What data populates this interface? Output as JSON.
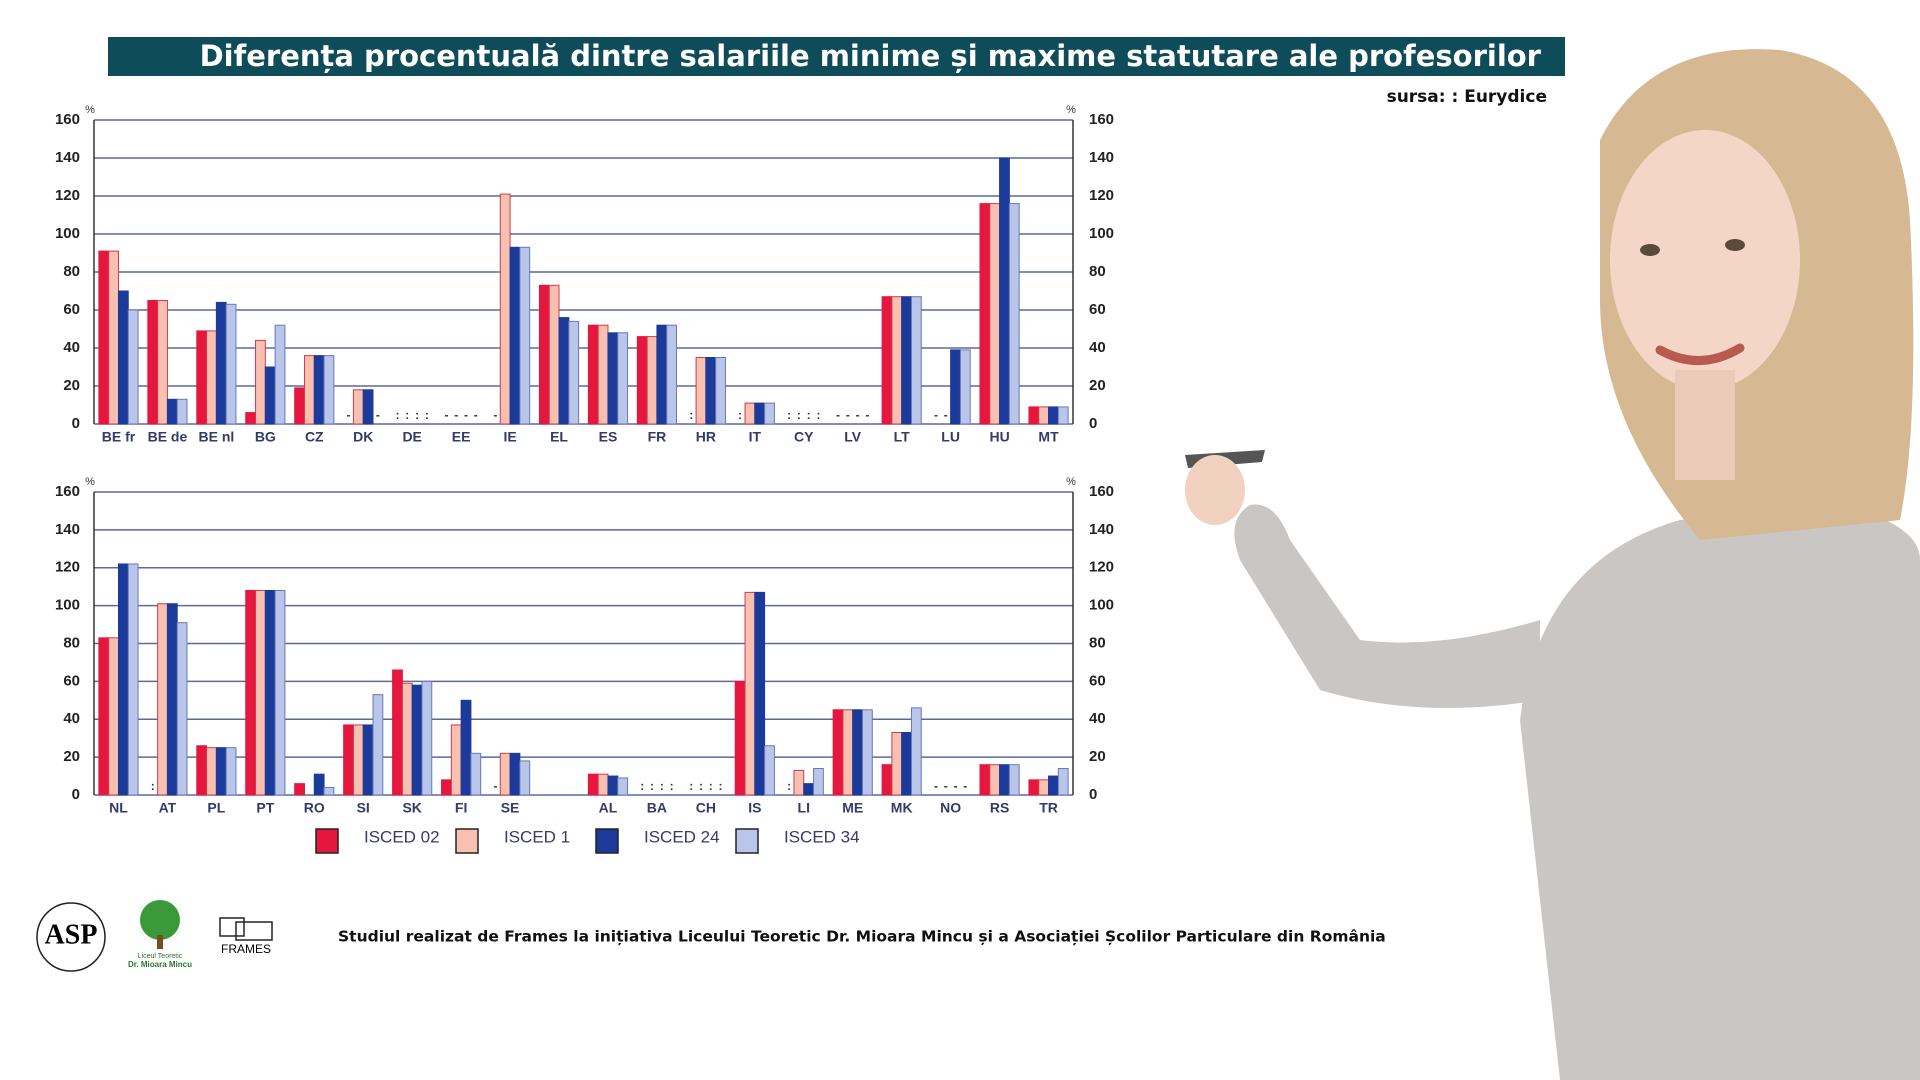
{
  "header": {
    "title": "Diferența procentuală dintre salariile minime și maxime statutare ale profesorilor",
    "source": "sursa: : Eurydice"
  },
  "footer": {
    "text": "Studiul realizat de  Frames la inițiativa Liceului Teoretic Dr. Mioara Mincu și a Asociației Școlilor Particulare din România",
    "logos": {
      "asp": "ASP",
      "school_line1": "Liceul Teoretic",
      "school_line2": "Dr. Mioara Mincu",
      "frames": "FRAMES"
    }
  },
  "chart_data": [
    {
      "type": "bar",
      "y_unit": "%",
      "ylim": [
        0,
        160
      ],
      "yticks": [
        0,
        20,
        40,
        60,
        80,
        100,
        120,
        140,
        160
      ],
      "grid": true,
      "categories": [
        "BE fr",
        "BE de",
        "BE nl",
        "BG",
        "CZ",
        "DK",
        "DE",
        "EE",
        "IE",
        "EL",
        "ES",
        "FR",
        "HR",
        "IT",
        "CY",
        "LV",
        "LT",
        "LU",
        "HU",
        "MT"
      ],
      "series": [
        {
          "color": "#e5173f",
          "values": [
            91,
            65,
            49,
            6,
            19,
            null,
            null,
            null,
            null,
            73,
            52,
            46,
            null,
            null,
            null,
            null,
            67,
            null,
            116,
            9
          ],
          "value_labels": [
            null,
            null,
            null,
            null,
            null,
            "-",
            ":",
            "-",
            "-",
            null,
            null,
            null,
            ":",
            ":",
            ":",
            "-",
            null,
            "-",
            null,
            null
          ]
        },
        {
          "color": "#f7c0b0",
          "values": [
            91,
            65,
            49,
            44,
            36,
            18,
            null,
            null,
            121,
            73,
            52,
            46,
            35,
            11,
            null,
            null,
            67,
            null,
            116,
            9
          ],
          "value_labels": [
            null,
            null,
            null,
            null,
            null,
            null,
            ":",
            "-",
            null,
            null,
            null,
            null,
            null,
            null,
            ":",
            "-",
            null,
            "-",
            null,
            null
          ]
        },
        {
          "color": "#1c3a9a",
          "values": [
            70,
            13,
            64,
            30,
            36,
            18,
            null,
            null,
            93,
            56,
            48,
            52,
            35,
            11,
            null,
            null,
            67,
            39,
            140,
            9
          ],
          "value_labels": [
            null,
            null,
            null,
            null,
            null,
            null,
            ":",
            "-",
            null,
            null,
            null,
            null,
            null,
            null,
            ":",
            "-",
            null,
            null,
            null,
            null
          ]
        },
        {
          "color": "#b9c5e9",
          "values": [
            60,
            13,
            63,
            52,
            36,
            null,
            null,
            null,
            93,
            54,
            48,
            52,
            35,
            11,
            null,
            null,
            67,
            39,
            116,
            9
          ],
          "value_labels": [
            null,
            null,
            null,
            null,
            null,
            "-",
            ":",
            "-",
            null,
            null,
            null,
            null,
            null,
            null,
            ":",
            "-",
            null,
            null,
            null,
            null
          ]
        }
      ]
    },
    {
      "type": "bar",
      "y_unit": "%",
      "ylim": [
        0,
        160
      ],
      "yticks": [
        0,
        20,
        40,
        60,
        80,
        100,
        120,
        140,
        160
      ],
      "grid": true,
      "categories": [
        "NL",
        "AT",
        "PL",
        "PT",
        "RO",
        "SI",
        "SK",
        "FI",
        "SE",
        null,
        "AL",
        "BA",
        "CH",
        "IS",
        "LI",
        "ME",
        "MK",
        "NO",
        "RS",
        "TR"
      ],
      "series": [
        {
          "name": "ISCED 02",
          "color": "#e5173f",
          "values": [
            83,
            null,
            26,
            108,
            6,
            37,
            66,
            8,
            null,
            null,
            11,
            null,
            null,
            60,
            null,
            45,
            16,
            null,
            16,
            8
          ],
          "value_labels": [
            null,
            ":",
            null,
            null,
            null,
            null,
            null,
            null,
            "-",
            null,
            null,
            ":",
            ":",
            null,
            ":",
            null,
            null,
            "-",
            null,
            null
          ]
        },
        {
          "name": "ISCED 1",
          "color": "#f7c0b0",
          "values": [
            83,
            101,
            25,
            108,
            0,
            37,
            59,
            37,
            22,
            null,
            11,
            null,
            null,
            107,
            13,
            45,
            33,
            null,
            16,
            8
          ],
          "value_labels": [
            null,
            null,
            null,
            null,
            null,
            null,
            null,
            null,
            null,
            null,
            null,
            ":",
            ":",
            null,
            null,
            null,
            null,
            "-",
            null,
            null
          ]
        },
        {
          "name": "ISCED 24",
          "color": "#1c3a9a",
          "values": [
            122,
            101,
            25,
            108,
            11,
            37,
            58,
            50,
            22,
            null,
            10,
            null,
            null,
            107,
            6,
            45,
            33,
            null,
            16,
            10
          ],
          "value_labels": [
            null,
            null,
            null,
            null,
            null,
            null,
            null,
            null,
            null,
            null,
            null,
            ":",
            ":",
            null,
            null,
            null,
            null,
            "-",
            null,
            null
          ]
        },
        {
          "name": "ISCED 34",
          "color": "#b9c5e9",
          "values": [
            122,
            91,
            25,
            108,
            4,
            53,
            60,
            22,
            18,
            null,
            9,
            null,
            null,
            26,
            14,
            45,
            46,
            null,
            16,
            14
          ],
          "value_labels": [
            null,
            null,
            null,
            null,
            null,
            null,
            null,
            null,
            null,
            null,
            null,
            ":",
            ":",
            null,
            null,
            null,
            null,
            "-",
            null,
            null
          ]
        }
      ]
    }
  ]
}
